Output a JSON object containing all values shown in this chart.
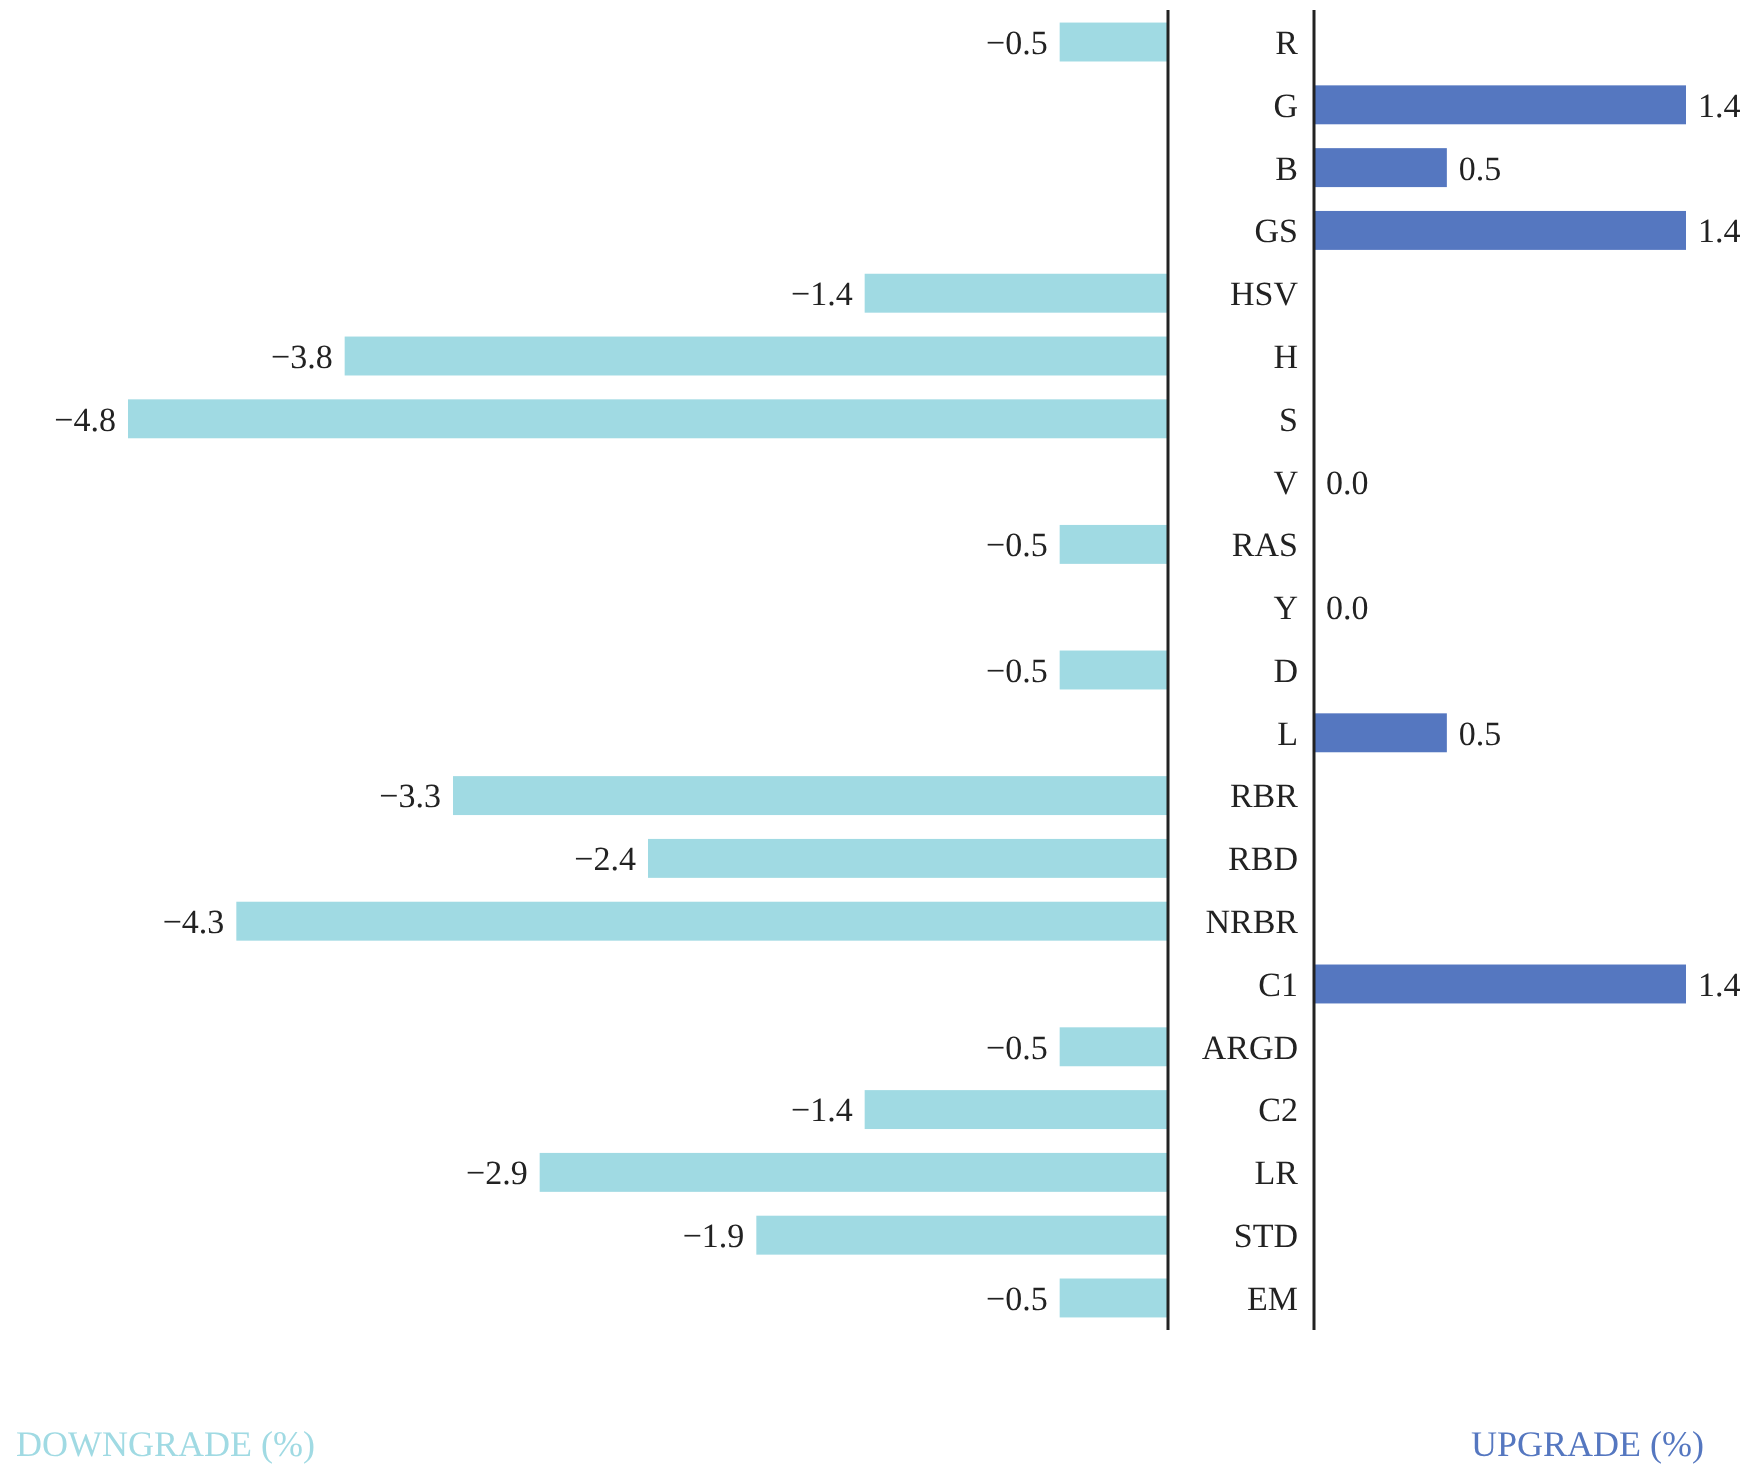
{
  "chart_data": [
    {
      "type": "bar",
      "orientation": "horizontal",
      "xlabel": "DOWNGRADE (%)",
      "categories": [
        "R",
        "G",
        "B",
        "GS",
        "HSV",
        "H",
        "S",
        "V",
        "RAS",
        "Y",
        "D",
        "L",
        "RBR",
        "RBD",
        "NRBR",
        "C1",
        "ARGD",
        "C2",
        "LR",
        "STD",
        "EM"
      ],
      "values": [
        -0.5,
        null,
        null,
        null,
        -1.4,
        -3.8,
        -4.8,
        null,
        -0.5,
        null,
        -0.5,
        null,
        -3.3,
        -2.4,
        -4.3,
        null,
        -0.5,
        -1.4,
        -2.9,
        -1.9,
        -0.5
      ],
      "color": "#a0dae3",
      "xlim": [
        -4.8,
        0
      ],
      "data_labels": true
    },
    {
      "type": "bar",
      "orientation": "horizontal",
      "xlabel": "UPGRADE (%)",
      "categories": [
        null,
        null,
        null,
        null,
        null,
        null,
        null,
        null,
        null,
        null,
        null,
        null,
        null,
        null,
        null,
        null,
        null,
        null,
        null,
        null,
        null
      ],
      "values": [
        null,
        1.4,
        0.5,
        1.4,
        null,
        null,
        null,
        0.0,
        null,
        0.0,
        null,
        0.5,
        null,
        null,
        null,
        1.4,
        null,
        null,
        null,
        null,
        null
      ],
      "value_labels": [
        null,
        "1.4",
        "0.5",
        "1.4",
        null,
        null,
        null,
        "0.0",
        null,
        "0.0",
        null,
        "0.5",
        null,
        null,
        null,
        "1.4",
        null,
        null,
        null,
        null,
        null
      ],
      "color": "#5577c0",
      "xlim": [
        0,
        1.4
      ]
    }
  ]
}
